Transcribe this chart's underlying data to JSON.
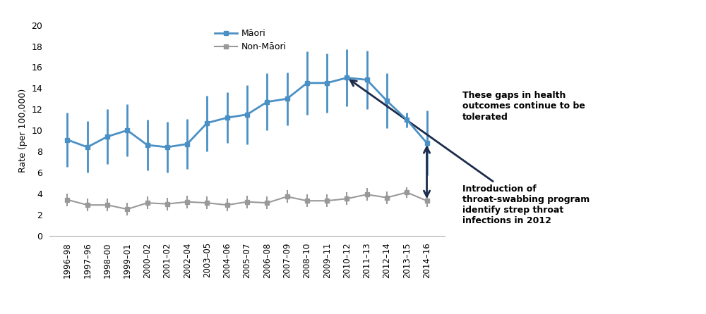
{
  "x_labels": [
    "1996–98",
    "1997–96",
    "1998–00",
    "1999–01",
    "2000–02",
    "2001–02",
    "2002–04",
    "2003–05",
    "2004–06",
    "2005–07",
    "2006–08",
    "2007–09",
    "2008–10",
    "2009–11",
    "2010–12",
    "2011–13",
    "2012–14",
    "2013–15",
    "2014–16"
  ],
  "maori_values": [
    9.1,
    8.4,
    9.4,
    10.0,
    8.6,
    8.4,
    8.7,
    10.7,
    11.2,
    11.5,
    12.7,
    13.0,
    14.5,
    14.5,
    15.0,
    14.8,
    12.8,
    11.0,
    8.8
  ],
  "maori_lower": [
    6.5,
    6.0,
    6.8,
    7.5,
    6.2,
    6.0,
    6.3,
    8.0,
    8.8,
    8.7,
    10.0,
    10.5,
    11.5,
    11.7,
    12.3,
    12.0,
    10.2,
    10.3,
    5.7
  ],
  "maori_upper": [
    11.7,
    10.9,
    12.0,
    12.5,
    11.0,
    10.8,
    11.1,
    13.3,
    13.6,
    14.3,
    15.4,
    15.5,
    17.5,
    17.3,
    17.7,
    17.6,
    15.4,
    11.7,
    11.9
  ],
  "nonmaori_values": [
    3.4,
    2.9,
    2.9,
    2.5,
    3.1,
    3.0,
    3.2,
    3.1,
    2.9,
    3.2,
    3.1,
    3.7,
    3.3,
    3.3,
    3.5,
    3.9,
    3.6,
    4.1,
    3.3
  ],
  "nonmaori_lower": [
    2.8,
    2.3,
    2.3,
    1.9,
    2.5,
    2.4,
    2.6,
    2.5,
    2.3,
    2.6,
    2.5,
    3.1,
    2.7,
    2.7,
    2.9,
    3.3,
    3.0,
    3.6,
    2.7
  ],
  "nonmaori_upper": [
    4.0,
    3.5,
    3.5,
    3.1,
    3.7,
    3.6,
    3.8,
    3.7,
    3.5,
    3.8,
    3.7,
    4.3,
    3.9,
    3.9,
    4.1,
    4.5,
    4.2,
    4.6,
    3.9
  ],
  "maori_color": "#4A90C4",
  "nonmaori_color": "#999999",
  "arrow_color": "#1C2B4B",
  "ylabel": "Rate (per 100,000)",
  "ylim": [
    0,
    20
  ],
  "yticks": [
    0,
    2,
    4,
    6,
    8,
    10,
    12,
    14,
    16,
    18,
    20
  ],
  "annotation1_text": "Introduction of\nthroat-swabbing program\nidentify strep throat\ninfections in 2012",
  "annotation2_text": "These gaps in health\noutcomes continue to be\ntolerated",
  "maori_label": "Māori",
  "nonmaori_label": "Non-Māori"
}
